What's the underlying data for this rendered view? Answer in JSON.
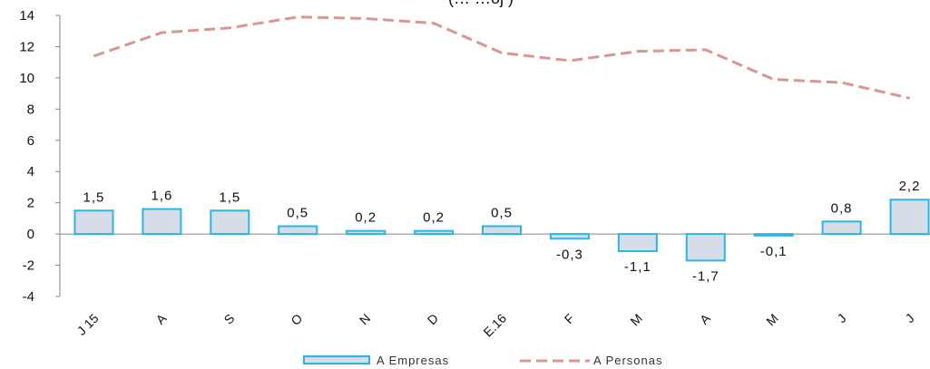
{
  "chart_data": {
    "type": "bar",
    "title": "(… …ój )",
    "categories": [
      "J 15",
      "A",
      "S",
      "O",
      "N",
      "D",
      "E.16",
      "F",
      "M",
      "A",
      "M",
      "J",
      "J"
    ],
    "ylim": [
      -4,
      14
    ],
    "yticks": [
      -4,
      -2,
      0,
      2,
      4,
      6,
      8,
      10,
      12,
      14
    ],
    "grid": false,
    "legend_position": "bottom",
    "series": [
      {
        "name": "A Empresas",
        "type": "bar",
        "values": [
          1.5,
          1.6,
          1.5,
          0.5,
          0.2,
          0.2,
          0.5,
          -0.3,
          -1.1,
          -1.7,
          -0.1,
          0.8,
          2.2
        ],
        "labels": [
          "1,5",
          "1,6",
          "1,5",
          "0,5",
          "0,2",
          "0,2",
          "0,5",
          "-0,3",
          "-1,1",
          "-1,7",
          "-0,1",
          "0,8",
          "2,2"
        ],
        "color": "#29b6e3",
        "fill": "#d7dde8"
      },
      {
        "name": "A Personas",
        "type": "line",
        "values": [
          11.4,
          12.9,
          13.2,
          13.9,
          13.8,
          13.5,
          11.6,
          11.1,
          11.7,
          11.8,
          9.9,
          9.7,
          8.7
        ],
        "color": "#d99694"
      }
    ]
  }
}
